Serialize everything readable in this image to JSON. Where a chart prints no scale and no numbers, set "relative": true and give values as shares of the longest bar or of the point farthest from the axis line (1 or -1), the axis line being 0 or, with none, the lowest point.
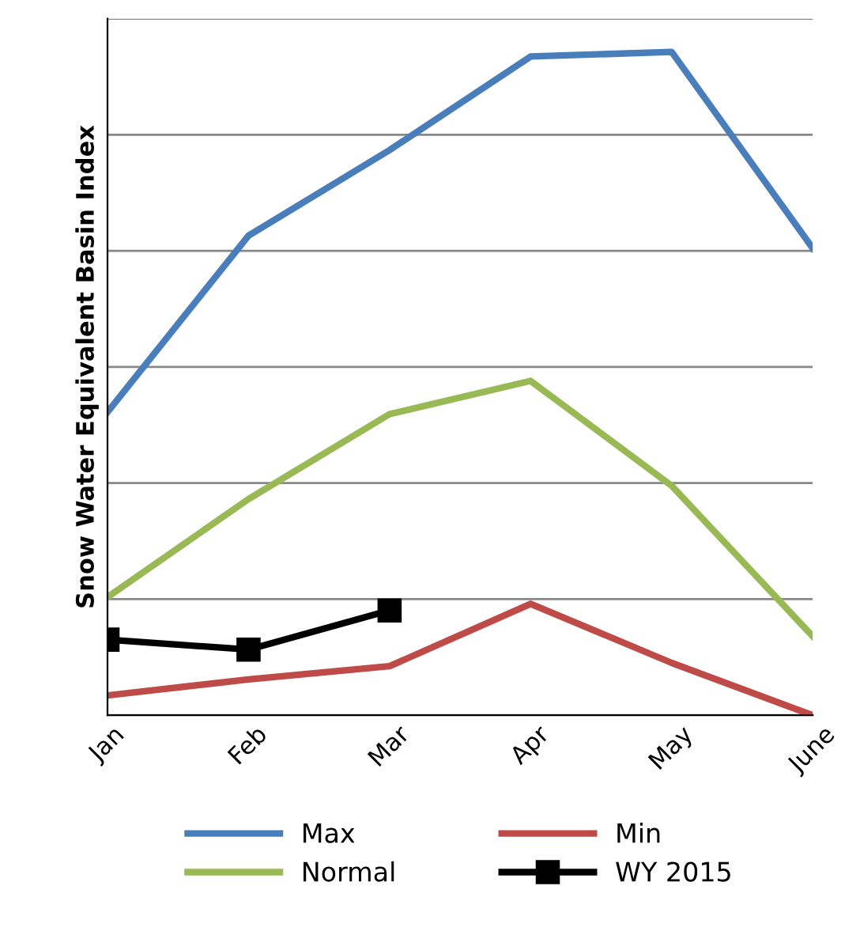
{
  "chart_data": {
    "type": "line",
    "relative": true,
    "ylabel": "Snow Water Equivalent Basin Index",
    "categories": [
      "Jan",
      "Feb",
      "Mar",
      "Apr",
      "May",
      "June"
    ],
    "series": [
      {
        "name": "Max",
        "color": "#4a7ebb",
        "values": [
          0.457,
          0.723,
          0.852,
          0.993,
          1.0,
          0.704
        ]
      },
      {
        "name": "Min",
        "color": "#be4b48",
        "values": [
          0.03,
          0.054,
          0.074,
          0.168,
          0.079,
          0
        ]
      },
      {
        "name": "Normal",
        "color": "#98b954",
        "values": [
          0.178,
          0.326,
          0.454,
          0.504,
          0.346,
          0.119
        ]
      },
      {
        "name": "WY 2015",
        "color": "#000000",
        "marker": "square",
        "values": [
          0.114,
          0.099,
          0.158,
          null,
          null,
          null
        ]
      }
    ],
    "grid": "y",
    "legend": "bottom"
  }
}
